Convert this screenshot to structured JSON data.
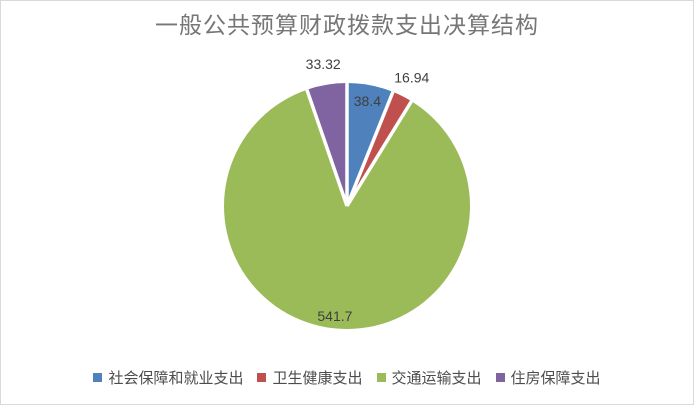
{
  "chart": {
    "title": "一般公共预算财政拨款支出决算结构"
  },
  "chart_data": {
    "type": "pie",
    "title": "一般公共预算财政拨款支出决算结构",
    "total": 630.36,
    "start_angle_deg": 0,
    "direction": "clockwise",
    "legend_position": "bottom",
    "background_color": "#ffffff",
    "frame_border_color": "#d9d9d9",
    "title_color": "#767676",
    "label_color": "#404040",
    "separator_color": "#ffffff",
    "series": [
      {
        "name": "社会保障和就业支出",
        "value": 38.4,
        "label": "38.4",
        "color": "#4F81BD",
        "label_placement": "inside",
        "label_radius": 0.87
      },
      {
        "name": "卫生健康支出",
        "value": 16.94,
        "label": "16.94",
        "color": "#C0504D",
        "label_placement": "outside",
        "label_radius": 1.17
      },
      {
        "name": "交通运输支出",
        "value": 541.7,
        "label": "541.7",
        "color": "#9BBB59",
        "label_placement": "inside",
        "label_radius": 0.9
      },
      {
        "name": "住房保障支出",
        "value": 33.32,
        "label": "33.32",
        "color": "#8064A2",
        "label_placement": "outside",
        "label_radius": 1.17
      }
    ]
  }
}
